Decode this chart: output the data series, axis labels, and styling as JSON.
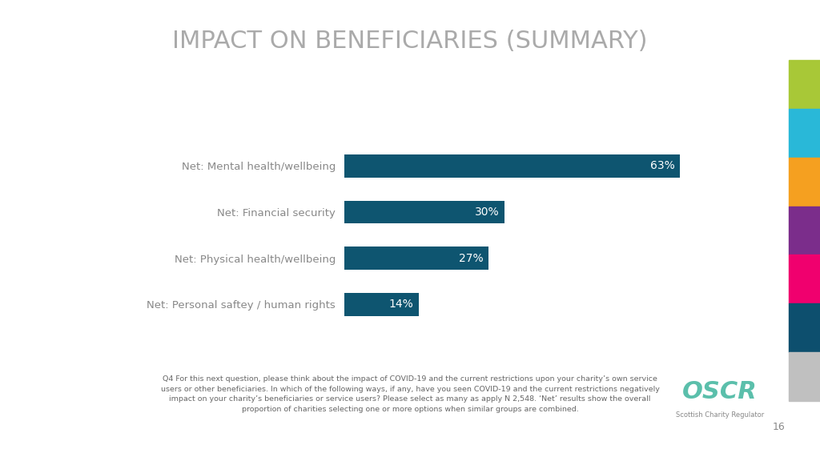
{
  "title": "IMPACT ON BENEFICIARIES (SUMMARY)",
  "categories": [
    "Net: Mental health/wellbeing",
    "Net: Financial security",
    "Net: Physical health/wellbeing",
    "Net: Personal saftey / human rights"
  ],
  "values": [
    63,
    30,
    27,
    14
  ],
  "bar_color": "#0e5570",
  "title_color": "#aaaaaa",
  "label_color": "#888888",
  "value_label_color": "#ffffff",
  "background_color": "#ffffff",
  "footnote_line1": "Q4 For this next question, please think about the impact of COVID-19 and the current restrictions upon your charity’s own service",
  "footnote_line2": "users or other beneficiaries. In which of the following ways, if any, have you seen COVID-19 and the current restrictions negatively",
  "footnote_line3": "impact on your charity’s beneficiaries or service users? Please select as many as apply N 2,548. ‘Net’ results show the overall",
  "footnote_line4": "proportion of charities selecting one or more options when similar groups are combined.",
  "page_number": "16",
  "sidebar_colors": [
    "#a8c837",
    "#29b8d8",
    "#f5a020",
    "#7b2d8b",
    "#f0006e",
    "#0d4f6e",
    "#c0c0c0"
  ],
  "xlim": [
    0,
    80
  ],
  "oscr_color": "#5bbfab"
}
